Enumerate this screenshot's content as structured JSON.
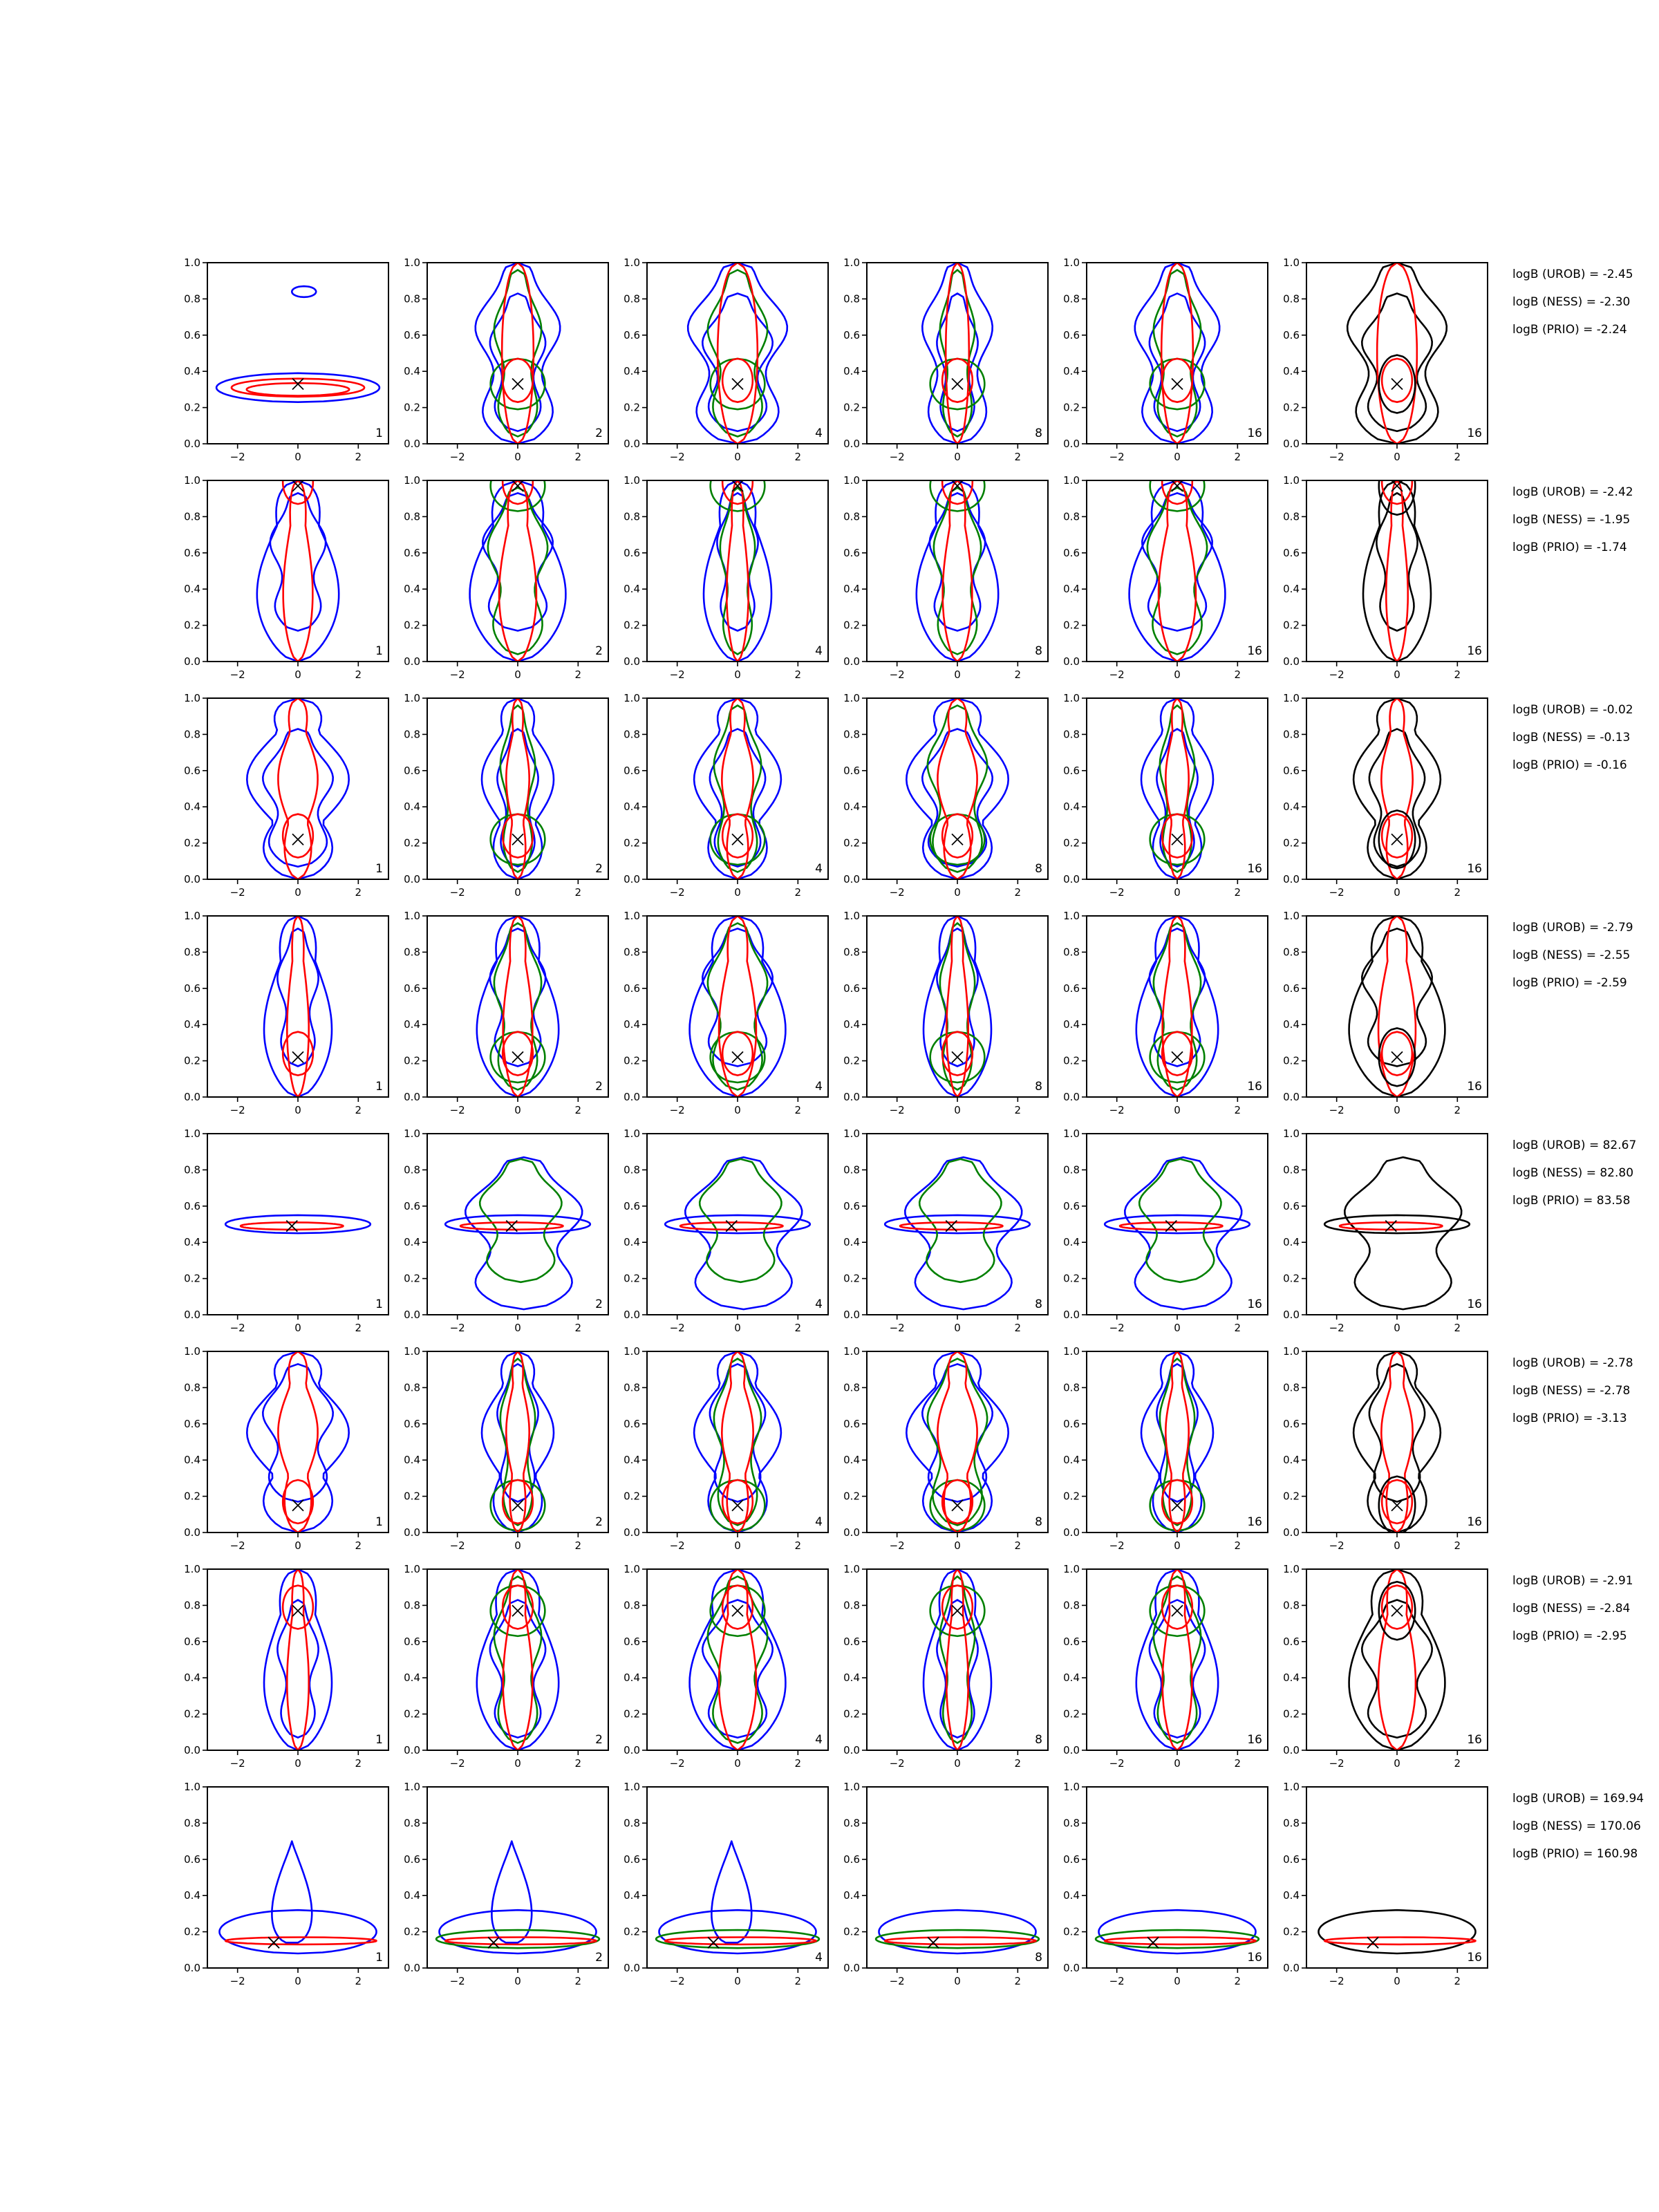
{
  "figure": {
    "rows": 8,
    "cols": 6,
    "colors": {
      "frame": "#000000",
      "urob": "#0000ff",
      "ness": "#008000",
      "prio": "#ff0000",
      "reference": "#000000",
      "marker": "#000000"
    },
    "chart_data": {
      "type": "contour",
      "title": "",
      "xlabel": "",
      "ylabel": "",
      "xlim": [
        -3,
        3
      ],
      "ylim": [
        0.0,
        1.0
      ],
      "xticks": [
        "−2",
        "0",
        "2"
      ],
      "yticks": [
        "0.0",
        "0.2",
        "0.4",
        "0.6",
        "0.8",
        "1.0"
      ],
      "grid": false,
      "column_labels": [
        "1",
        "2",
        "4",
        "8",
        "16",
        "16"
      ],
      "rows": [
        {
          "marker": [
            0.0,
            0.33
          ],
          "column_labels": [
            "1",
            "2",
            "4",
            "8",
            "16",
            "16"
          ],
          "logB": [
            "logB (UROB) = -2.45",
            "logB (NESS) = -2.30",
            "logB (PRIO) = -2.24"
          ]
        },
        {
          "marker": [
            0.0,
            0.97
          ],
          "column_labels": [
            "1",
            "2",
            "4",
            "8",
            "16",
            "16"
          ],
          "logB": [
            "logB (UROB) = -2.42",
            "logB (NESS) = -1.95",
            "logB (PRIO) = -1.74"
          ]
        },
        {
          "marker": [
            0.0,
            0.22
          ],
          "column_labels": [
            "1",
            "2",
            "4",
            "8",
            "16",
            "16"
          ],
          "logB": [
            "logB (UROB) = -0.02",
            "logB (NESS) = -0.13",
            "logB (PRIO) = -0.16"
          ]
        },
        {
          "marker": [
            0.0,
            0.22
          ],
          "column_labels": [
            "1",
            "2",
            "4",
            "8",
            "16",
            "16"
          ],
          "logB": [
            "logB (UROB) = -2.79",
            "logB (NESS) = -2.55",
            "logB (PRIO) = -2.59"
          ]
        },
        {
          "marker": [
            -0.2,
            0.49
          ],
          "column_labels": [
            "1",
            "2",
            "4",
            "8",
            "16",
            "16"
          ],
          "logB": [
            "logB (UROB) = 82.67",
            "logB (NESS) = 82.80",
            "logB (PRIO) = 83.58"
          ]
        },
        {
          "marker": [
            0.0,
            0.15
          ],
          "column_labels": [
            "1",
            "2",
            "4",
            "8",
            "16",
            "16"
          ],
          "logB": [
            "logB (UROB) = -2.78",
            "logB (NESS) = -2.78",
            "logB (PRIO) = -3.13"
          ]
        },
        {
          "marker": [
            0.0,
            0.77
          ],
          "column_labels": [
            "1",
            "2",
            "4",
            "8",
            "16",
            "16"
          ],
          "logB": [
            "logB (UROB) = -2.91",
            "logB (NESS) = -2.84",
            "logB (PRIO) = -2.95"
          ]
        },
        {
          "marker": [
            -0.8,
            0.14
          ],
          "column_labels": [
            "1",
            "2",
            "4",
            "8",
            "16",
            "16"
          ],
          "logB": [
            "logB (UROB) = 169.94",
            "logB (NESS) = 170.06",
            "logB (PRIO) = 160.98"
          ]
        }
      ]
    }
  }
}
